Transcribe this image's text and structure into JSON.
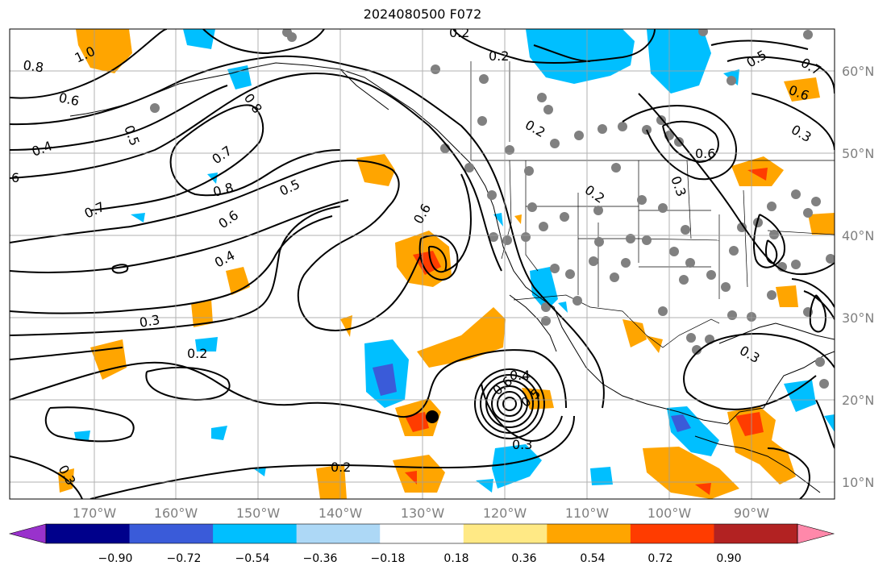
{
  "title": "2024080500 F072",
  "map": {
    "lat_labels": [
      "60°N",
      "50°N",
      "40°N",
      "30°N",
      "20°N",
      "10°N"
    ],
    "lon_labels": [
      "170°W",
      "160°W",
      "150°W",
      "140°W",
      "130°W",
      "120°W",
      "110°W",
      "100°W",
      "90°W"
    ],
    "contour_labels": [
      "0.8",
      "1.0",
      "0.6",
      "0.4",
      "0.5",
      "0.7",
      "0.8",
      "0.6",
      "0.4",
      "0.5",
      "0.7",
      "0.3",
      "0.2",
      "0.6",
      "0.2",
      "0.3",
      "0.2",
      "0.2",
      "0.5",
      "0.6",
      "0.4",
      "0.6",
      "0.3",
      "0.3",
      "0.6",
      "0.8",
      "0.2",
      "0.2",
      "0.3",
      "6",
      "0.3",
      "0.5",
      "0.7"
    ]
  },
  "colorbar": {
    "ticks": [
      "−0.90",
      "−0.72",
      "−0.54",
      "−0.36",
      "−0.18",
      "0.18",
      "0.36",
      "0.54",
      "0.72",
      "0.90"
    ],
    "colors": [
      "#9932cc",
      "#00008b",
      "#3a5bd9",
      "#00bfff",
      "#add8f6",
      "#ffffff",
      "#ffe985",
      "#ffa500",
      "#ff3c00",
      "#b22222",
      "#ff88aa"
    ]
  },
  "colors": {
    "positive_light": "#ffa500",
    "positive_strong": "#ff3c00",
    "negative_light": "#00bfff",
    "negative_strong": "#3a5bd9",
    "station_dot": "#808080",
    "grid": "#a0a0a0"
  }
}
